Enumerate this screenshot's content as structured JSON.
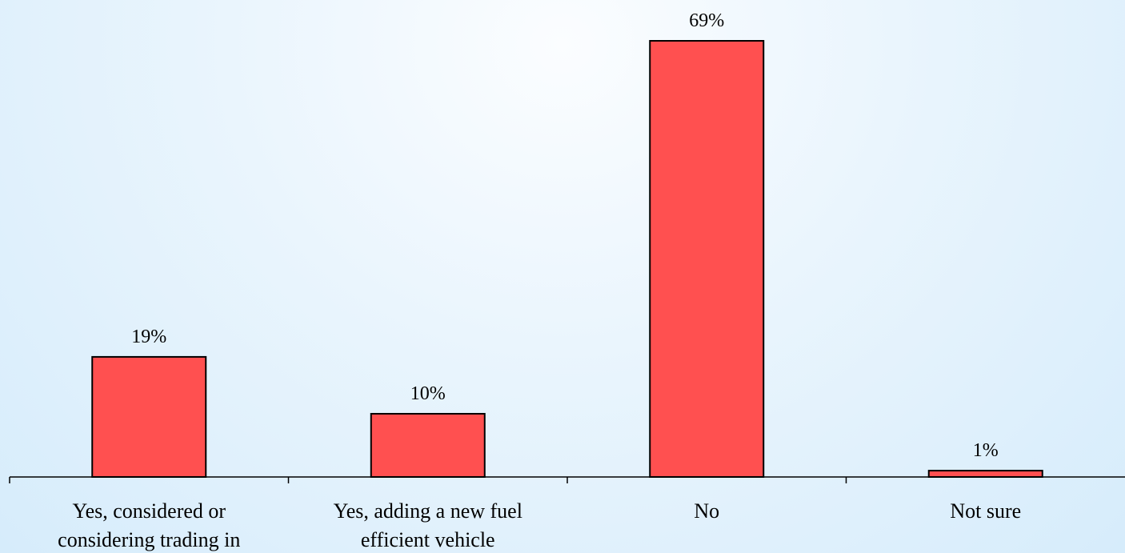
{
  "chart_data": {
    "type": "bar",
    "title": "",
    "xlabel": "",
    "ylabel": "",
    "categories": [
      [
        "Yes, considered or",
        "considering trading in"
      ],
      [
        "Yes, adding a new fuel",
        "efficient vehicle"
      ],
      [
        "No"
      ],
      [
        "Not sure"
      ]
    ],
    "values": [
      19,
      10,
      69,
      1
    ],
    "value_labels": [
      "19%",
      "10%",
      "69%",
      "1%"
    ],
    "ylim": [
      0,
      69
    ],
    "grid": false,
    "legend": "none",
    "colors": {
      "bar": "#ff5050",
      "outline": "#000000"
    }
  }
}
